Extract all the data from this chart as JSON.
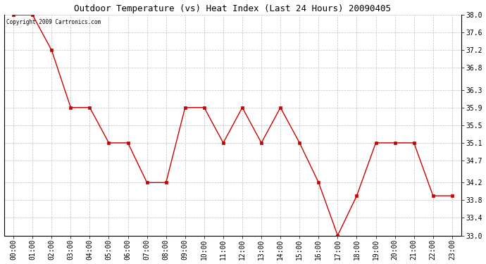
{
  "title": "Outdoor Temperature (vs) Heat Index (Last 24 Hours) 20090405",
  "copyright_text": "Copyright 2009 Cartronics.com",
  "x_labels": [
    "00:00",
    "01:00",
    "02:00",
    "03:00",
    "04:00",
    "05:00",
    "06:00",
    "07:00",
    "08:00",
    "09:00",
    "10:00",
    "11:00",
    "12:00",
    "13:00",
    "14:00",
    "15:00",
    "16:00",
    "17:00",
    "18:00",
    "19:00",
    "20:00",
    "21:00",
    "22:00",
    "23:00"
  ],
  "y_values": [
    38.0,
    38.0,
    37.2,
    35.9,
    35.9,
    35.1,
    35.1,
    34.2,
    34.2,
    35.9,
    35.9,
    35.1,
    35.9,
    35.1,
    35.9,
    35.1,
    34.2,
    33.0,
    33.9,
    35.1,
    35.1,
    35.1,
    33.9,
    33.9
  ],
  "line_color": "#cc0000",
  "marker_color": "#cc0000",
  "bg_color": "#ffffff",
  "plot_bg_color": "#ffffff",
  "grid_color": "#b0b0b0",
  "y_min": 33.0,
  "y_max": 38.0,
  "y_ticks": [
    33.0,
    33.4,
    33.8,
    34.2,
    34.7,
    35.1,
    35.5,
    35.9,
    36.3,
    36.8,
    37.2,
    37.6,
    38.0
  ],
  "title_fontsize": 9,
  "tick_fontsize": 7,
  "copyright_fontsize": 5.5
}
